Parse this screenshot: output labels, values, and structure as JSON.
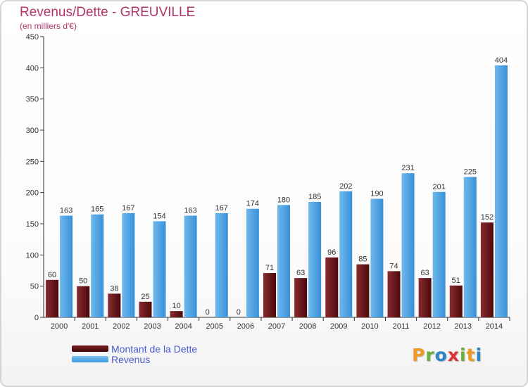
{
  "header": {
    "title": "Revenus/Dette - GREUVILLE",
    "subtitle": "(en milliers d'€)"
  },
  "legend": {
    "dette": "Montant de la Dette",
    "revenus": "Revenus"
  },
  "logo": {
    "text": "Proxiti"
  },
  "colors": {
    "dette": "#6b1418",
    "revenus": "#4aa3e6",
    "title": "#b2356a",
    "legend_text": "#4a5bd0"
  },
  "chart_data": {
    "type": "bar",
    "title": "Revenus/Dette - GREUVILLE",
    "subtitle": "(en milliers d'€)",
    "categories": [
      "2000",
      "2001",
      "2002",
      "2003",
      "2004",
      "2005",
      "2006",
      "2007",
      "2008",
      "2009",
      "2010",
      "2011",
      "2012",
      "2013",
      "2014"
    ],
    "series": [
      {
        "name": "Montant de la Dette",
        "values": [
          60,
          50,
          38,
          25,
          10,
          0,
          0,
          71,
          63,
          96,
          85,
          74,
          63,
          51,
          152
        ]
      },
      {
        "name": "Revenus",
        "values": [
          163,
          165,
          167,
          154,
          163,
          167,
          174,
          180,
          185,
          202,
          190,
          231,
          201,
          225,
          404
        ]
      }
    ],
    "ylim": [
      0,
      450
    ],
    "yticks": [
      0,
      50,
      100,
      150,
      200,
      250,
      300,
      350,
      400,
      450
    ],
    "grid": false,
    "legend_position": "bottom-left"
  }
}
